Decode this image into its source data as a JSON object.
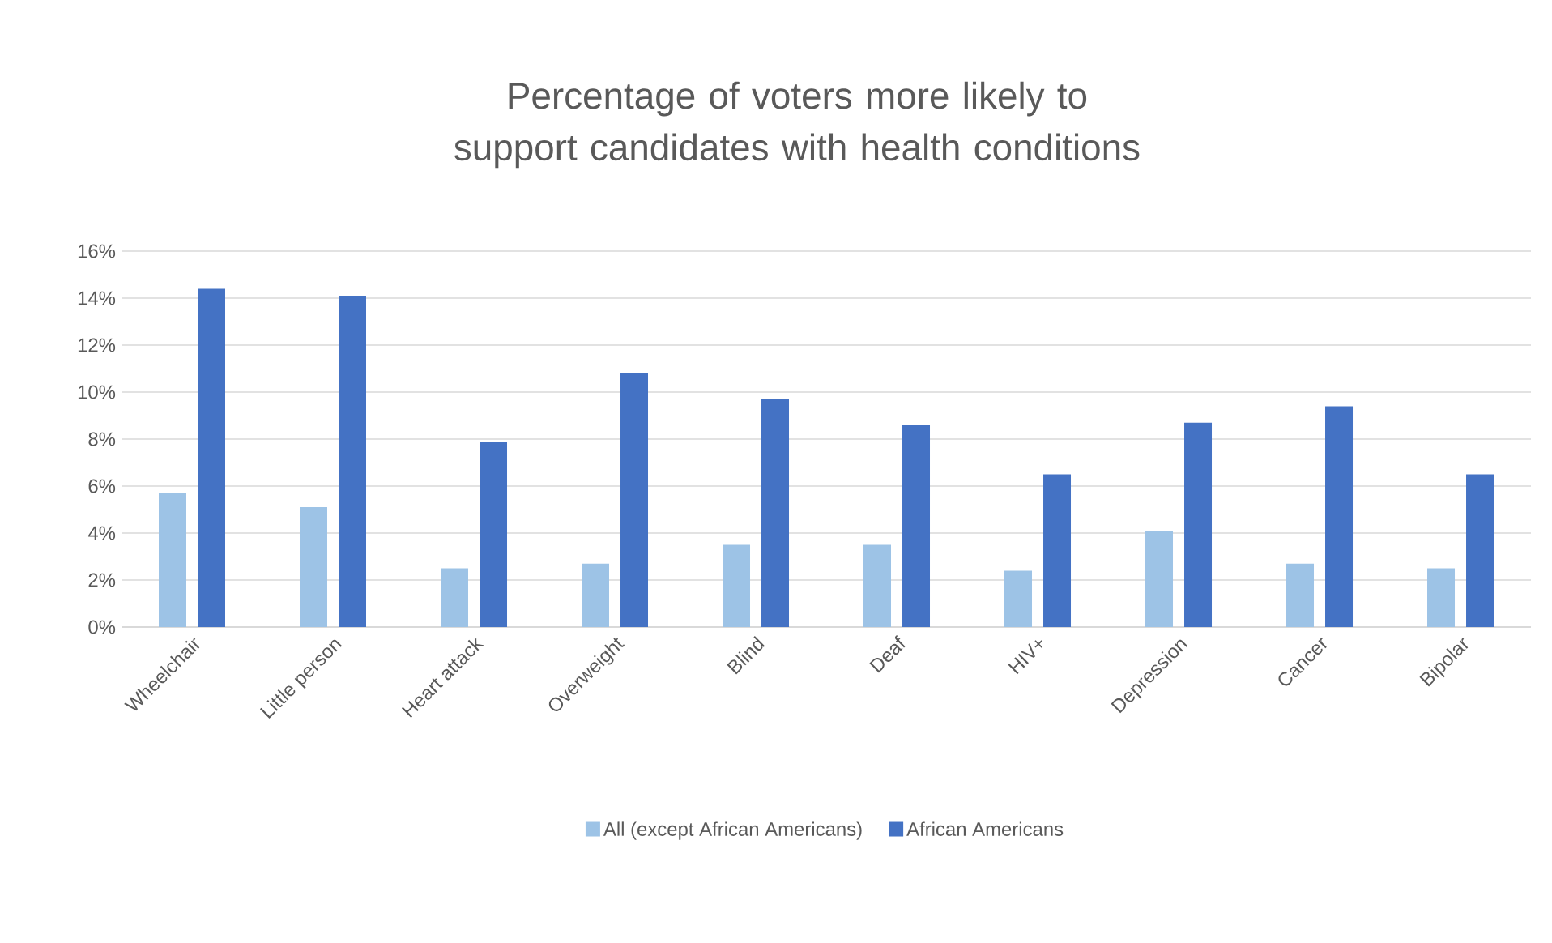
{
  "chart_data": {
    "type": "bar",
    "title": "Percentage of voters more likely to support candidates with health conditions",
    "categories": [
      "Wheelchair",
      "Little person",
      "Heart attack",
      "Overweight",
      "Blind",
      "Deaf",
      "HIV+",
      "Depression",
      "Cancer",
      "Bipolar"
    ],
    "series": [
      {
        "name": "All (except African Americans)",
        "color": "#9dc3e6",
        "values": [
          5.7,
          5.1,
          2.5,
          2.7,
          3.5,
          3.5,
          2.4,
          4.1,
          2.7,
          2.5
        ]
      },
      {
        "name": "African Americans",
        "color": "#4472c4",
        "values": [
          14.4,
          14.1,
          7.9,
          10.8,
          9.7,
          8.6,
          6.5,
          8.7,
          9.4,
          6.5
        ]
      }
    ],
    "ylim": [
      0,
      16
    ],
    "yticks": [
      {
        "value": 0,
        "label": "0%"
      },
      {
        "value": 2,
        "label": "2%"
      },
      {
        "value": 4,
        "label": "4%"
      },
      {
        "value": 6,
        "label": "6%"
      },
      {
        "value": 8,
        "label": "8%"
      },
      {
        "value": 10,
        "label": "10%"
      },
      {
        "value": 12,
        "label": "12%"
      },
      {
        "value": 14,
        "label": "14%"
      },
      {
        "value": 16,
        "label": "16%"
      }
    ],
    "grid": "y",
    "legend": "bottom"
  }
}
